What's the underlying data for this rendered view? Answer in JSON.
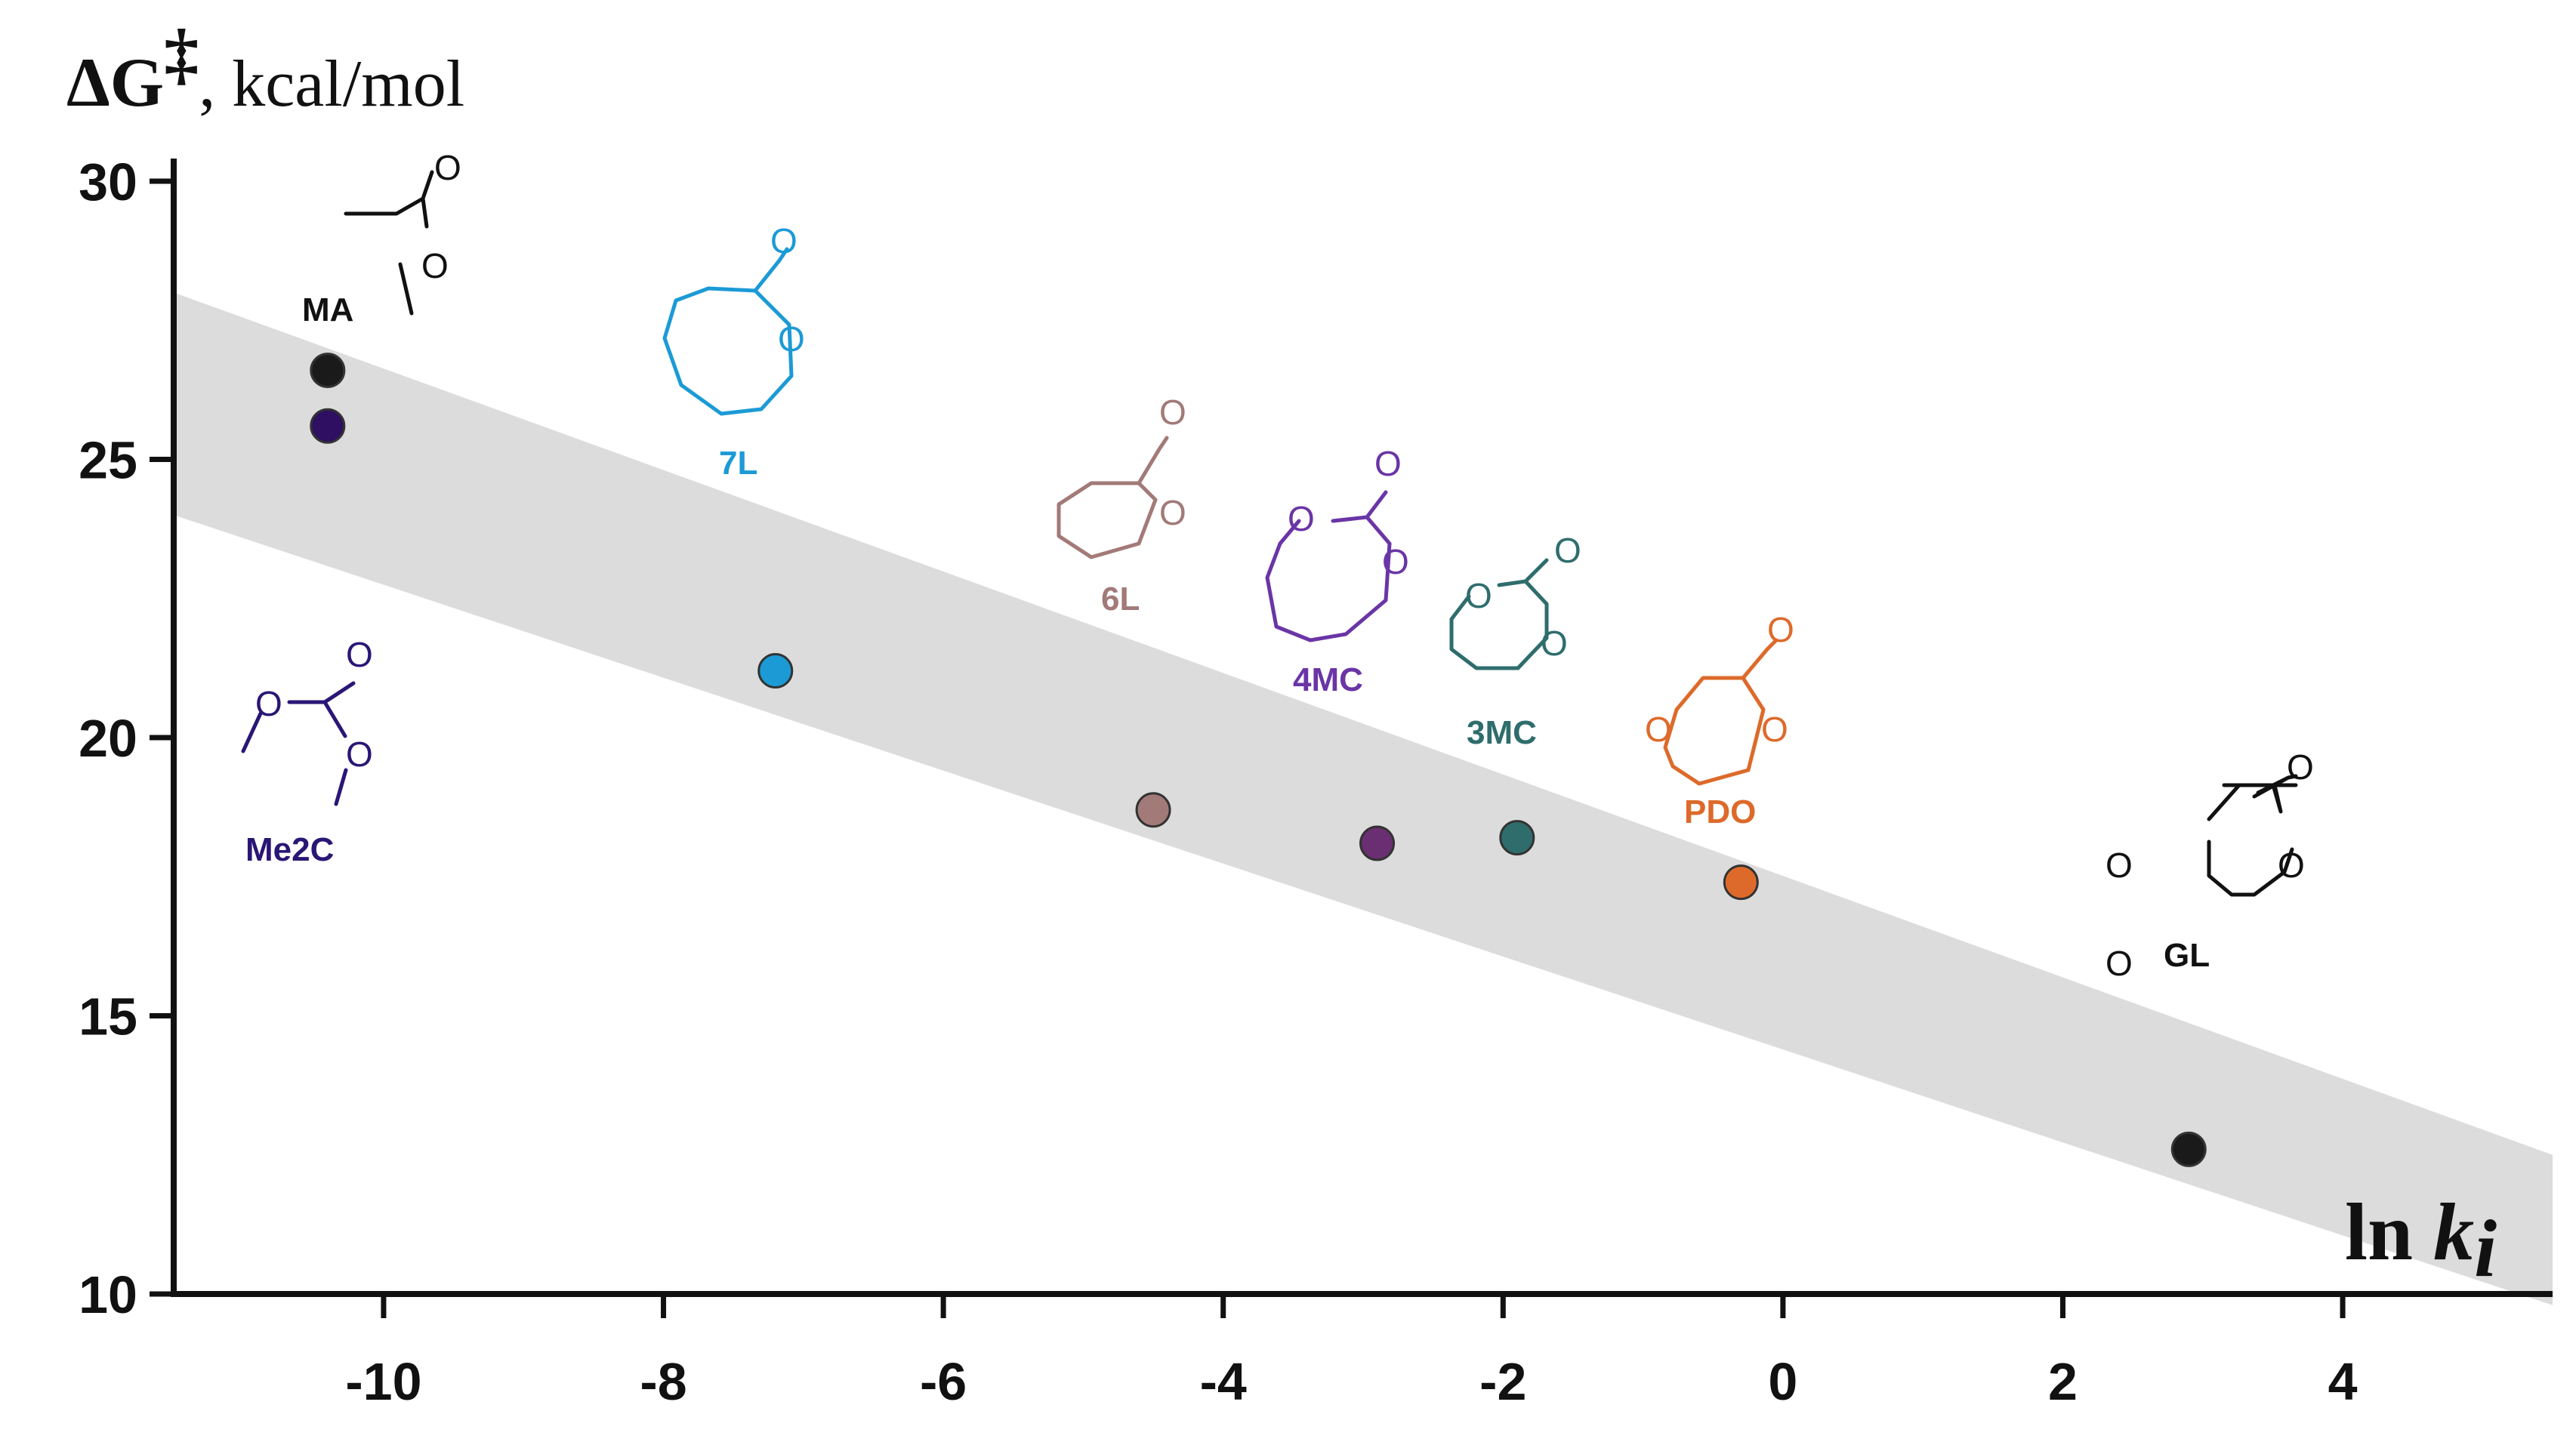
{
  "chart_data": {
    "type": "scatter",
    "title": "",
    "ylabel": {
      "main": "ΔG",
      "sup": "‡",
      "rest": ", kcal/mol"
    },
    "xlabel": {
      "ln": "ln ",
      "k": "k",
      "sub": "i"
    },
    "xlim": [
      -11.5,
      5.5
    ],
    "ylim": [
      10,
      30
    ],
    "x_ticks": [
      -10,
      -8,
      -6,
      -4,
      -2,
      0,
      2,
      4
    ],
    "x_tick_labels": [
      "-10",
      "-8",
      "-6",
      "-4",
      "-2",
      "0",
      "2",
      "4"
    ],
    "y_ticks": [
      10,
      15,
      20,
      25,
      30
    ],
    "y_tick_labels": [
      "10",
      "15",
      "20",
      "25",
      "30"
    ],
    "band": {
      "color": "#dcdcdc",
      "upper": [
        [
          -11.5,
          28.0
        ],
        [
          5.5,
          12.5
        ]
      ],
      "lower": [
        [
          -11.5,
          24.0
        ],
        [
          5.5,
          9.8
        ]
      ]
    },
    "points": [
      {
        "label": "MA",
        "x": -10.4,
        "y": 26.6,
        "color": "#1a1a1a"
      },
      {
        "label": "Me2C",
        "x": -10.4,
        "y": 25.6,
        "color": "#2e0f62"
      },
      {
        "label": "7L",
        "x": -7.2,
        "y": 21.2,
        "color": "#1c9ad6"
      },
      {
        "label": "6L",
        "x": -4.5,
        "y": 18.7,
        "color": "#a27a78"
      },
      {
        "label": "4MC",
        "x": -2.9,
        "y": 18.1,
        "color": "#6a2e72"
      },
      {
        "label": "3MC",
        "x": -1.9,
        "y": 18.2,
        "color": "#2f6d6d"
      },
      {
        "label": "PDO",
        "x": -0.3,
        "y": 17.4,
        "color": "#dd6a2a"
      },
      {
        "label": "GL",
        "x": 2.9,
        "y": 12.6,
        "color": "#1a1a1a"
      }
    ],
    "molecules": [
      {
        "name": "MA",
        "color": "#111111"
      },
      {
        "name": "Me2C",
        "color": "#2a1675"
      },
      {
        "name": "7L",
        "color": "#1c9ad6"
      },
      {
        "name": "6L",
        "color": "#a27a78"
      },
      {
        "name": "4MC",
        "color": "#6a35a6"
      },
      {
        "name": "3MC",
        "color": "#2f6d6d"
      },
      {
        "name": "PDO",
        "color": "#dd6a2a"
      },
      {
        "name": "GL",
        "color": "#111111"
      }
    ],
    "atom_label": "O"
  }
}
